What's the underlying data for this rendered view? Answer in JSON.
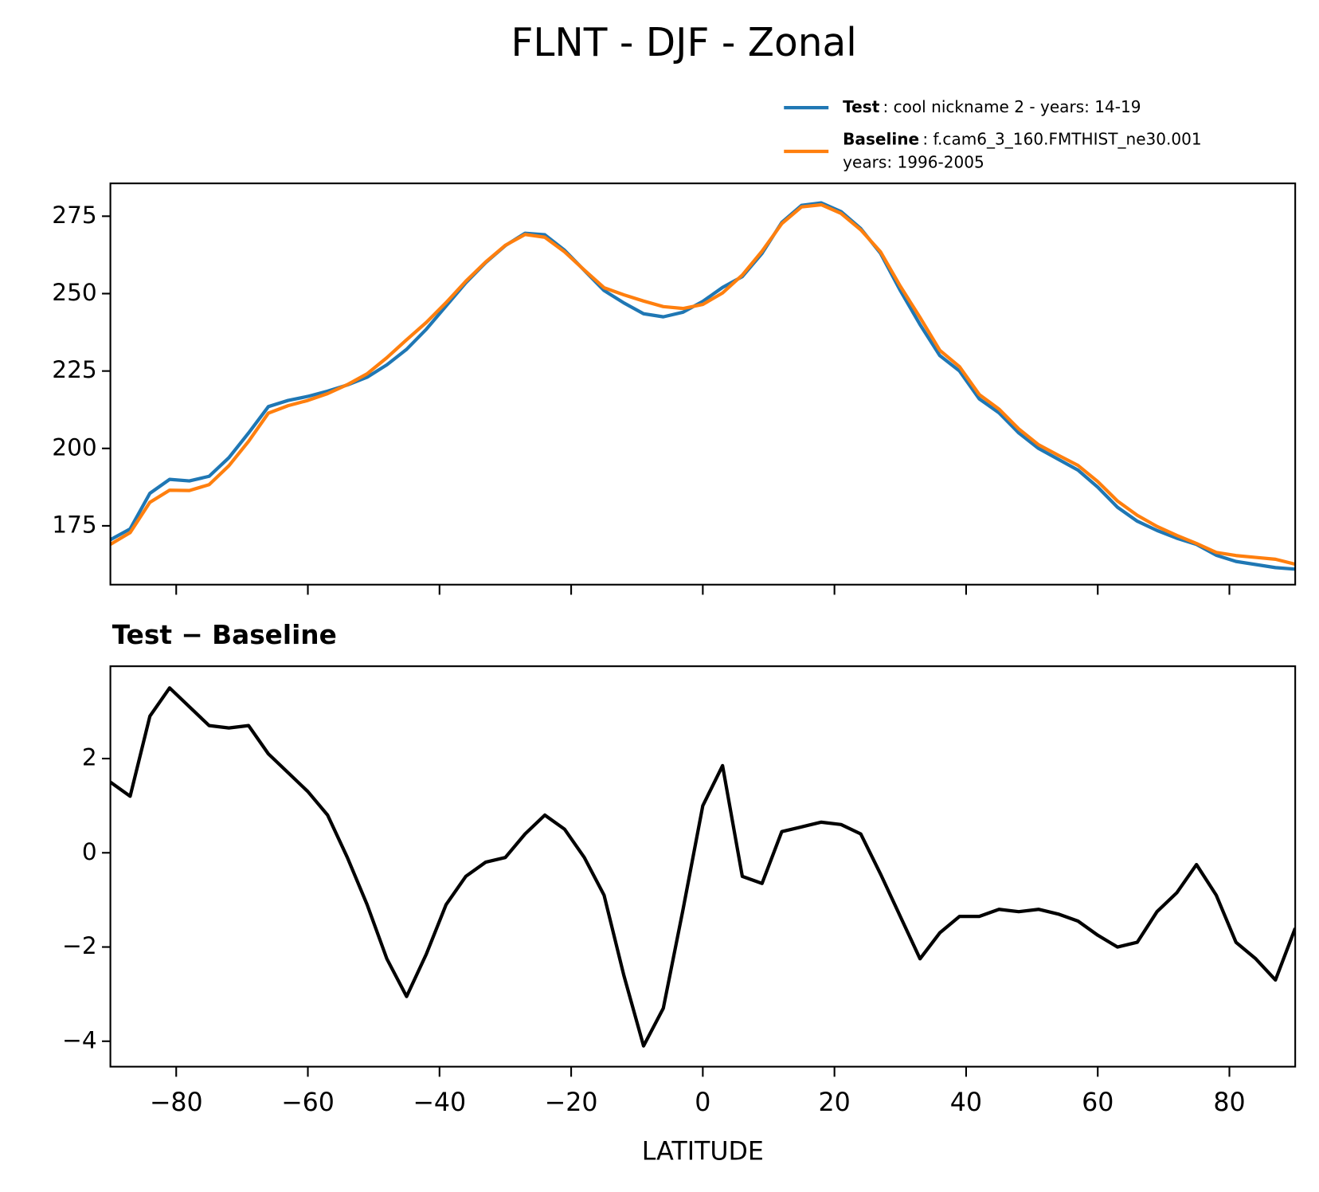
{
  "title": "FLNT - DJF - Zonal",
  "chart_data": [
    {
      "type": "line",
      "x": [
        -90,
        -87,
        -84,
        -81,
        -78,
        -75,
        -72,
        -69,
        -66,
        -63,
        -60,
        -57,
        -54,
        -51,
        -48,
        -45,
        -42,
        -39,
        -36,
        -33,
        -30,
        -27,
        -24,
        -21,
        -18,
        -15,
        -12,
        -9,
        -6,
        -3,
        0,
        3,
        6,
        9,
        12,
        15,
        18,
        21,
        24,
        27,
        30,
        33,
        36,
        39,
        42,
        45,
        48,
        51,
        54,
        57,
        60,
        63,
        66,
        69,
        72,
        75,
        78,
        81,
        84,
        87,
        90
      ],
      "series": [
        {
          "name": "Test",
          "description": [
            ": cool nickname 2 - years: 14-19"
          ],
          "color": "#1f77b4",
          "values": [
            170.5,
            174,
            185.5,
            190,
            189.5,
            191,
            197,
            205,
            213.5,
            215.5,
            216.8,
            218.5,
            220.5,
            223,
            227,
            232,
            238.5,
            246,
            253.5,
            260,
            265.5,
            269.5,
            269,
            264,
            257.5,
            251,
            247,
            243.5,
            242.5,
            244,
            247.5,
            252,
            255.5,
            263,
            273,
            278.5,
            279.3,
            276.5,
            271,
            263,
            251,
            240,
            230,
            225,
            216,
            211.5,
            205,
            200,
            196.5,
            193,
            187.5,
            181,
            176.5,
            173.5,
            171,
            169,
            165.5,
            163.5,
            162.5,
            161.5,
            161
          ]
        },
        {
          "name": "Baseline",
          "description": [
            ": f.cam6_3_160.FMTHIST_ne30.001",
            "years: 1996-2005"
          ],
          "color": "#ff7f0e",
          "values": [
            169.0,
            172.8,
            182.6,
            186.5,
            186.4,
            188.3,
            194.4,
            202.3,
            211.4,
            213.8,
            215.5,
            217.7,
            220.6,
            224.1,
            229.3,
            235.1,
            240.7,
            247.1,
            254.0,
            260.2,
            265.6,
            269.1,
            268.2,
            263.5,
            257.6,
            251.9,
            249.6,
            247.6,
            245.8,
            245.2,
            246.5,
            250.2,
            256.0,
            263.7,
            272.6,
            278.0,
            278.7,
            275.9,
            270.6,
            263.5,
            252.4,
            242.3,
            231.7,
            226.4,
            217.4,
            212.7,
            206.3,
            201.2,
            197.8,
            194.5,
            189.3,
            183.0,
            178.4,
            174.8,
            171.9,
            169.3,
            166.4,
            165.4,
            164.8,
            164.2,
            162.6
          ]
        }
      ],
      "xlim": [
        -90,
        90
      ],
      "xticks": [
        -80,
        -60,
        -40,
        -20,
        0,
        20,
        40,
        60,
        80
      ],
      "ylim": [
        156,
        285.6
      ],
      "yticks": [
        175,
        200,
        225,
        250,
        275
      ],
      "legend": "upper right"
    },
    {
      "type": "line",
      "title": "Test − Baseline",
      "xlabel": "LATITUDE",
      "x": [
        -90,
        -87,
        -84,
        -81,
        -78,
        -75,
        -72,
        -69,
        -66,
        -63,
        -60,
        -57,
        -54,
        -51,
        -48,
        -45,
        -42,
        -39,
        -36,
        -33,
        -30,
        -27,
        -24,
        -21,
        -18,
        -15,
        -12,
        -9,
        -6,
        -3,
        0,
        3,
        6,
        9,
        12,
        15,
        18,
        21,
        24,
        27,
        30,
        33,
        36,
        39,
        42,
        45,
        48,
        51,
        54,
        57,
        60,
        63,
        66,
        69,
        72,
        75,
        78,
        81,
        84,
        87,
        90
      ],
      "series": [
        {
          "color": "#000000",
          "values": [
            1.5,
            1.2,
            2.9,
            3.5,
            3.1,
            2.7,
            2.65,
            2.7,
            2.1,
            1.7,
            1.3,
            0.8,
            -0.1,
            -1.1,
            -2.25,
            -3.05,
            -2.15,
            -1.1,
            -0.5,
            -0.2,
            -0.1,
            0.4,
            0.8,
            0.5,
            -0.1,
            -0.9,
            -2.6,
            -4.1,
            -3.3,
            -1.2,
            1.0,
            1.85,
            -0.5,
            -0.65,
            0.45,
            0.55,
            0.65,
            0.6,
            0.4,
            -0.45,
            -1.35,
            -2.25,
            -1.7,
            -1.35,
            -1.35,
            -1.2,
            -1.25,
            -1.2,
            -1.3,
            -1.45,
            -1.75,
            -2.0,
            -1.9,
            -1.25,
            -0.85,
            -0.25,
            -0.9,
            -1.9,
            -2.25,
            -2.7,
            -1.6
          ]
        }
      ],
      "xlim": [
        -90,
        90
      ],
      "xticks": [
        {
          "value": -80,
          "label": "−80"
        },
        {
          "value": -60,
          "label": "−60"
        },
        {
          "value": -40,
          "label": "−40"
        },
        {
          "value": -20,
          "label": "−20"
        },
        0,
        20,
        40,
        60,
        80
      ],
      "ylim": [
        -4.54,
        3.96
      ],
      "yticks": [
        {
          "value": -4,
          "label": "−4"
        },
        {
          "value": -2,
          "label": "−2"
        },
        0,
        2
      ]
    }
  ]
}
